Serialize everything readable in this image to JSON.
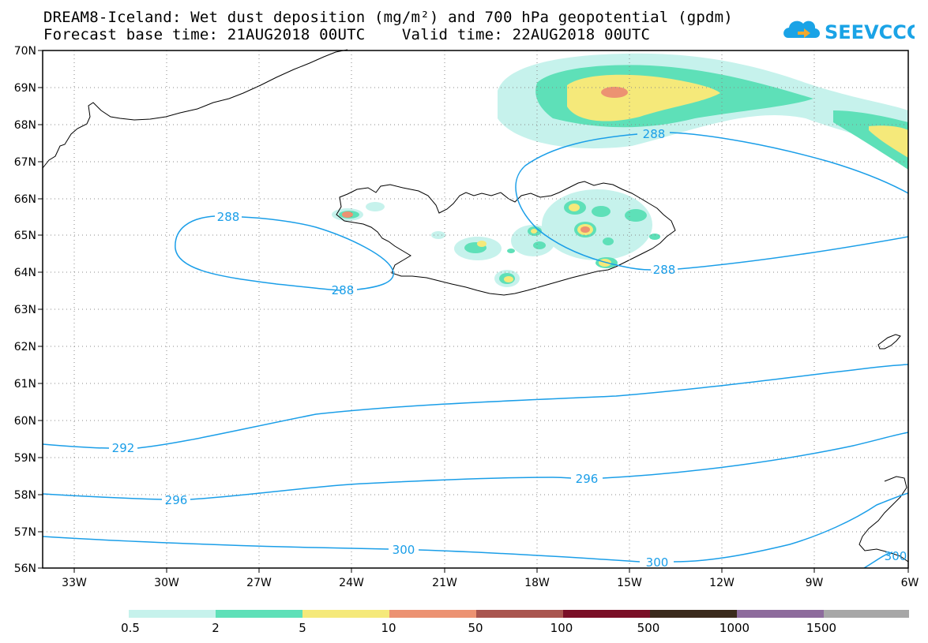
{
  "title": {
    "line1": "DREAM8-Iceland: Wet dust deposition (mg/m²) and 700 hPa geopotential (gpdm)",
    "line2": "Forecast base time: 21AUG2018 00UTC    Valid time: 22AUG2018 00UTC"
  },
  "logo": {
    "text": "SEEVCCC",
    "icon": "cloud-arrow-icon"
  },
  "map": {
    "lat_labels": [
      "70N",
      "69N",
      "68N",
      "67N",
      "66N",
      "65N",
      "64N",
      "63N",
      "62N",
      "61N",
      "60N",
      "59N",
      "58N",
      "57N",
      "56N"
    ],
    "lon_labels": [
      "33W",
      "30W",
      "27W",
      "24W",
      "21W",
      "18W",
      "15W",
      "12W",
      "9W",
      "6W"
    ],
    "contour_labels": [
      "288",
      "288",
      "288",
      "288",
      "292",
      "296",
      "296",
      "300",
      "300",
      "300"
    ],
    "contour_color": "#1a9ee8"
  },
  "colorbar": {
    "colors": [
      "#c6f2ec",
      "#5ee0b8",
      "#f5e97a",
      "#ec9272",
      "#a9554f",
      "#7a0f27",
      "#3a2a1c",
      "#8d6b9c",
      "#a7a7a7"
    ],
    "ticks": [
      "0.5",
      "2",
      "5",
      "10",
      "50",
      "100",
      "500",
      "1000",
      "1500"
    ]
  }
}
